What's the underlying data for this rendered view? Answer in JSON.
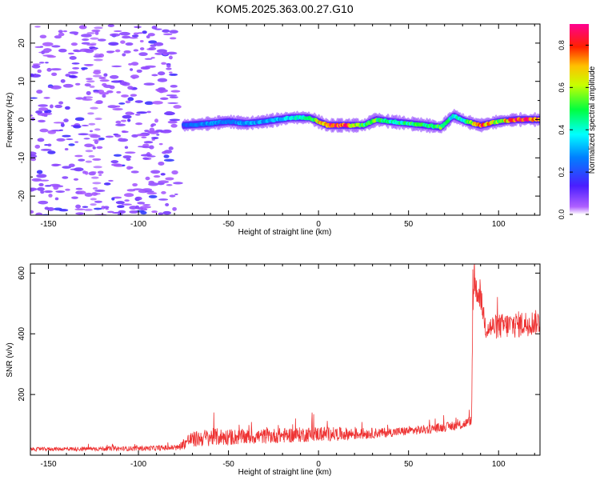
{
  "title": "KOM5.2025.363.00.27.G10",
  "colors": {
    "snr_line": "#ee3333",
    "scatter_blob": "#c9a6f2",
    "axis": "#000000"
  },
  "chart_data": [
    {
      "type": "heatmap",
      "xlabel": "Height of straight line (km)",
      "ylabel": "Frequency (Hz)",
      "xlim": [
        -160,
        123
      ],
      "ylim": [
        -25,
        25
      ],
      "xticks": [
        -150,
        -100,
        -50,
        0,
        50,
        100
      ],
      "yticks": [
        -20,
        -10,
        0,
        10,
        20
      ],
      "grid": false,
      "colorbar": {
        "label": "Normalized spectral amplitude",
        "range": [
          0.0,
          0.9
        ],
        "ticks": [
          "0.0",
          "0.2",
          "0.4",
          "0.6",
          "0.8"
        ],
        "colormap": "rainbow (purple-blue-cyan-green-yellow-red-magenta)"
      },
      "ridge": {
        "description": "Main signal ridge near 0 Hz from about -75 km to 123 km",
        "points": [
          {
            "x": -75,
            "f": -1.5,
            "a": 0.25
          },
          {
            "x": -60,
            "f": -1.0,
            "a": 0.3
          },
          {
            "x": -50,
            "f": -0.5,
            "a": 0.25
          },
          {
            "x": -40,
            "f": -1.0,
            "a": 0.35
          },
          {
            "x": -30,
            "f": -0.5,
            "a": 0.3
          },
          {
            "x": -15,
            "f": 0.5,
            "a": 0.4
          },
          {
            "x": -5,
            "f": 0.5,
            "a": 0.45
          },
          {
            "x": 5,
            "f": -1.5,
            "a": 0.9
          },
          {
            "x": 15,
            "f": -1.5,
            "a": 0.85
          },
          {
            "x": 25,
            "f": -1.5,
            "a": 0.5
          },
          {
            "x": 32,
            "f": 0.0,
            "a": 0.55
          },
          {
            "x": 40,
            "f": -0.5,
            "a": 0.45
          },
          {
            "x": 50,
            "f": -1.0,
            "a": 0.5
          },
          {
            "x": 60,
            "f": -1.5,
            "a": 0.5
          },
          {
            "x": 68,
            "f": -2.0,
            "a": 0.55
          },
          {
            "x": 75,
            "f": 1.0,
            "a": 0.4
          },
          {
            "x": 82,
            "f": -0.5,
            "a": 0.45
          },
          {
            "x": 90,
            "f": -1.5,
            "a": 0.85
          },
          {
            "x": 100,
            "f": -0.5,
            "a": 0.6
          },
          {
            "x": 110,
            "f": 0.0,
            "a": 0.9
          },
          {
            "x": 123,
            "f": 0.0,
            "a": 0.85
          }
        ],
        "noise_region": {
          "x_range": [
            -160,
            -78
          ],
          "f_range": [
            -25,
            25
          ],
          "level": "low"
        }
      }
    },
    {
      "type": "line",
      "xlabel": "Height of straight line (km)",
      "ylabel": "SNR (v/v)",
      "xlim": [
        -160,
        123
      ],
      "ylim": [
        0,
        630
      ],
      "xticks": [
        -150,
        -100,
        -50,
        0,
        50,
        100
      ],
      "yticks": [
        200,
        400,
        600
      ],
      "grid": false,
      "series": [
        {
          "envelope": [
            {
              "x": -160,
              "y": 20,
              "amp": 6
            },
            {
              "x": -100,
              "y": 22,
              "amp": 8
            },
            {
              "x": -78,
              "y": 25,
              "amp": 10
            },
            {
              "x": -72,
              "y": 50,
              "amp": 25
            },
            {
              "x": -60,
              "y": 60,
              "amp": 30
            },
            {
              "x": -40,
              "y": 60,
              "amp": 25
            },
            {
              "x": -20,
              "y": 65,
              "amp": 25
            },
            {
              "x": 0,
              "y": 70,
              "amp": 25
            },
            {
              "x": 20,
              "y": 70,
              "amp": 20
            },
            {
              "x": 40,
              "y": 75,
              "amp": 15
            },
            {
              "x": 60,
              "y": 85,
              "amp": 15
            },
            {
              "x": 80,
              "y": 100,
              "amp": 15
            },
            {
              "x": 85,
              "y": 115,
              "amp": 15
            },
            {
              "x": 86,
              "y": 560,
              "amp": 40
            },
            {
              "x": 90,
              "y": 520,
              "amp": 40
            },
            {
              "x": 93,
              "y": 420,
              "amp": 40
            },
            {
              "x": 110,
              "y": 430,
              "amp": 45
            },
            {
              "x": 123,
              "y": 440,
              "amp": 40
            }
          ]
        }
      ]
    }
  ]
}
